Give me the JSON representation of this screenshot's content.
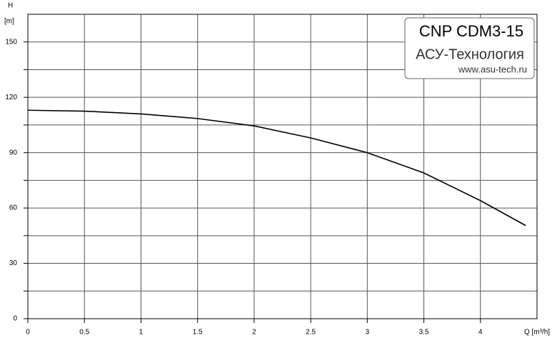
{
  "chart_data": {
    "type": "line",
    "x_label": "Q [m³/h]",
    "y_label": "H",
    "y_unit": "[m]",
    "box": {
      "title": "CNP CDM3-15",
      "company": "АСУ-Технология",
      "site": "www.asu-tech.ru"
    },
    "x": [
      0,
      0.5,
      1,
      1.5,
      2,
      2.5,
      3,
      3.5,
      4,
      4.4
    ],
    "series": [
      {
        "name": "H",
        "color": "#000000",
        "values": [
          113,
          112.5,
          111,
          108.5,
          104.5,
          98,
          90,
          79,
          64,
          50.5
        ]
      }
    ],
    "xlim": [
      0,
      4.5
    ],
    "xticks": [
      0,
      0.5,
      1,
      1.5,
      2,
      2.5,
      3,
      3.5,
      4
    ],
    "ylim": [
      0,
      165
    ],
    "yticks": [
      0,
      30,
      60,
      90,
      120,
      150
    ],
    "yticks_minor": [
      15,
      45,
      75,
      105,
      135
    ],
    "grid": true
  }
}
